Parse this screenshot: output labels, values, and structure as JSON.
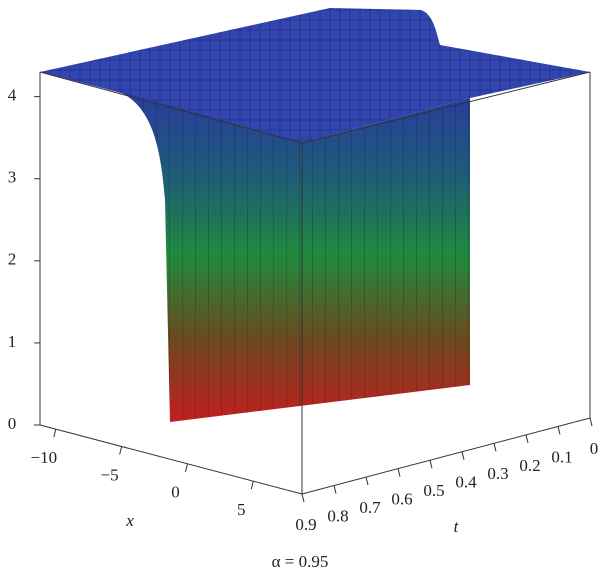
{
  "chart_data": {
    "type": "surface",
    "caption": "α = 0.95",
    "xlabel": "x",
    "ylabel": "t",
    "xlim": [
      -11.2,
      8.7
    ],
    "xticks": [
      {
        "value": -10,
        "label": "−10"
      },
      {
        "value": -5,
        "label": "−5"
      },
      0,
      5
    ],
    "ylim": [
      0,
      0.9
    ],
    "yticks": [
      0,
      0.1,
      0.2,
      0.3,
      0.4,
      0.5,
      0.6,
      0.7,
      0.8,
      0.9
    ],
    "zlim": [
      0,
      4.3
    ],
    "zticks": [
      0,
      1,
      2,
      3,
      4
    ]
  }
}
